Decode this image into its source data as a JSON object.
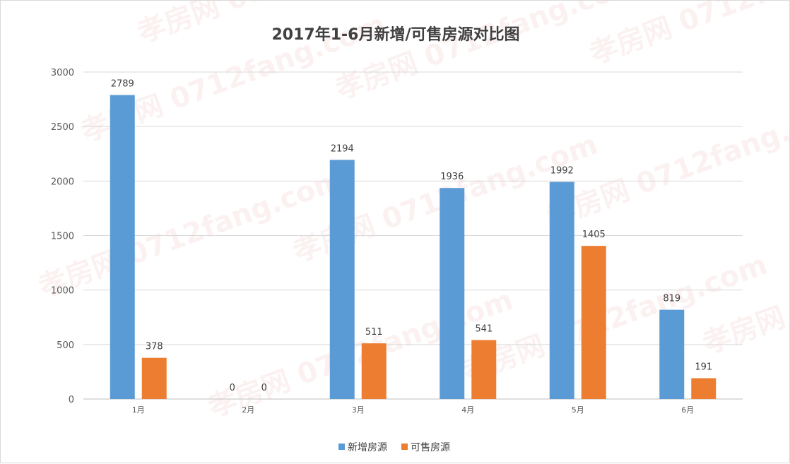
{
  "colors": {
    "series_1": "#5b9bd5",
    "series_2": "#ed7d31",
    "grid": "#d9d9d9",
    "axis": "#bfbfbf",
    "watermark": "#e8a0a0"
  },
  "watermark": {
    "text": "孝房网 0712fang.com"
  },
  "chart_data": {
    "type": "bar",
    "title": "2017年1-6月新增/可售房源对比图",
    "categories": [
      "1月",
      "2月",
      "3月",
      "4月",
      "5月",
      "6月"
    ],
    "series": [
      {
        "name": "新增房源",
        "values": [
          2789,
          0,
          2194,
          1936,
          1992,
          819
        ]
      },
      {
        "name": "可售房源",
        "values": [
          378,
          0,
          511,
          541,
          1405,
          191
        ]
      }
    ],
    "ylim": [
      0,
      3000
    ],
    "yticks": [
      0,
      500,
      1000,
      1500,
      2000,
      2500,
      3000
    ],
    "grid": true,
    "legend": "bottom",
    "data_labels": true
  }
}
